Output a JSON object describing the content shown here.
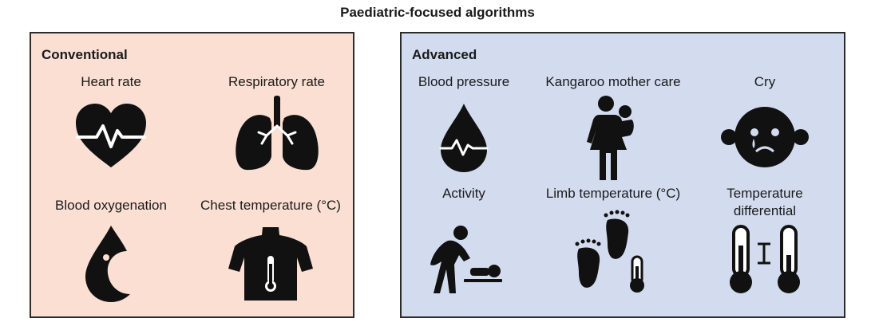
{
  "title": "Paediatric-focused algorithms",
  "conventional": {
    "heading": "Conventional",
    "items": [
      {
        "label": "Heart rate",
        "icon": "heart-icon"
      },
      {
        "label": "Respiratory rate",
        "icon": "lungs-icon"
      },
      {
        "label": "Blood oxygenation",
        "icon": "blood-drop-icon"
      },
      {
        "label": "Chest temperature (°C)",
        "icon": "torso-thermometer-icon"
      }
    ],
    "color": "#fbdfd3"
  },
  "advanced": {
    "heading": "Advanced",
    "items": [
      {
        "label": "Blood pressure",
        "icon": "blood-pressure-drop-icon"
      },
      {
        "label": "Kangaroo mother care",
        "icon": "mother-holding-baby-icon"
      },
      {
        "label": "Cry",
        "icon": "crying-face-icon"
      },
      {
        "label": "Activity",
        "icon": "caregiver-changing-baby-icon"
      },
      {
        "label": "Limb temperature (°C)",
        "icon": "feet-thermometer-icon"
      },
      {
        "label_line1": "Temperature",
        "label_line2": "differential",
        "icon": "two-thermometers-icon"
      }
    ],
    "color": "#d3dcef"
  }
}
